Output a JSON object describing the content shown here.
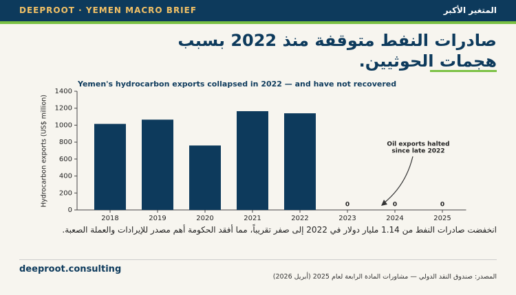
{
  "header": {
    "brand": "DEEPROOT · YEMEN MACRO BRIEF",
    "tag": "المتغير الأكبر"
  },
  "title": [
    "صادرات النفط متوقفة منذ 2022 بسبب",
    "هجمات الحوثيين."
  ],
  "chart_data": {
    "type": "bar",
    "title": "Yemen's hydrocarbon exports collapsed in 2022 — and have not recovered",
    "y_label": "Hydrocarbon exports (US$ million)",
    "categories": [
      "2018",
      "2019",
      "2020",
      "2021",
      "2022",
      "2023",
      "2024",
      "2025"
    ],
    "values": [
      1015,
      1065,
      760,
      1165,
      1140,
      0,
      0,
      0
    ],
    "colors": [
      "#0d3a5c",
      "#0d3a5c",
      "#0d3a5c",
      "#0d3a5c",
      "#0d3a5c",
      "#f2c166",
      "#0d3a5c",
      "#0d3a5c"
    ],
    "ylim": [
      0,
      1400
    ],
    "yticks": [
      0,
      200,
      400,
      600,
      800,
      1000,
      1200,
      1400
    ],
    "annotation": [
      "Oil exports halted",
      "since late 2022"
    ]
  },
  "caption": "انخفضت صادرات النفط من 1.14 مليار دولار في 2022 إلى صفر تقريباً، مما أفقد الحكومة أهم مصدر للإيرادات والعملة الصعبة.",
  "footer": {
    "site": "deeproot.consulting",
    "source": "المصدر: صندوق النقد الدولي — مشاورات المادة الرابعة لعام 2025 (أبريل 2026)"
  }
}
